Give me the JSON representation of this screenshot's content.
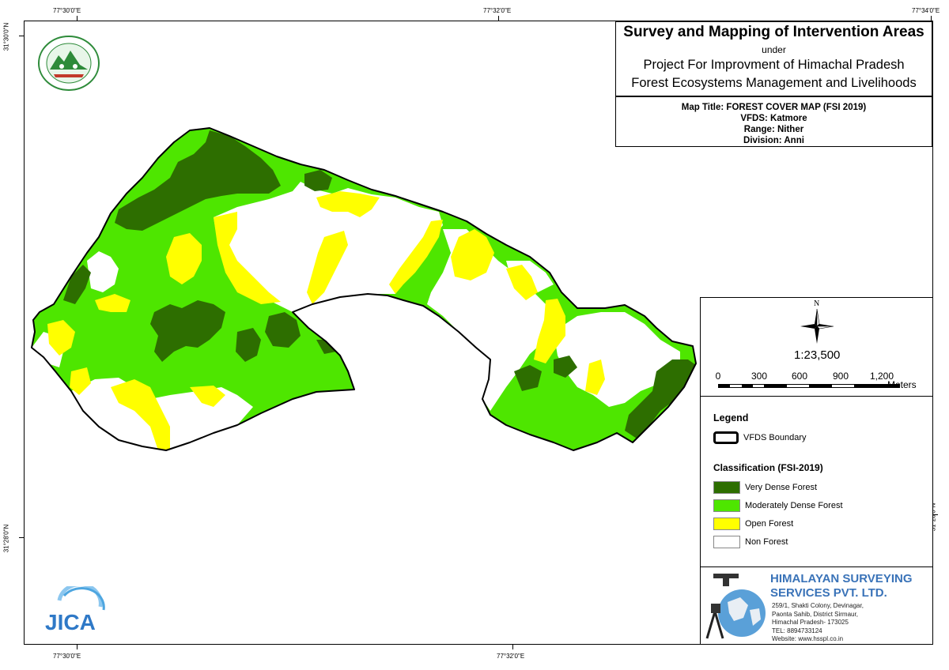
{
  "coordinates": {
    "top": [
      "77°30'0\"E",
      "77°32'0\"E",
      "77°34'0\"E"
    ],
    "bottom": [
      "77°30'0\"E",
      "77°32'0\"E"
    ],
    "left": [
      "31°30'0\"N",
      "31°28'0\"N"
    ],
    "right": [
      "31°28'0\"N"
    ]
  },
  "title": {
    "main": "Survey and Mapping of Intervention Areas",
    "under": "under",
    "project_line1": "Project For Improvment of Himachal Pradesh",
    "project_line2": "Forest Ecosystems Management and Livelihoods"
  },
  "map_info": {
    "map_title": "Map Title: FOREST COVER MAP (FSI 2019)",
    "vfds": "VFDS: Katmore",
    "range": "Range: Nither",
    "division": "Division: Anni"
  },
  "scale": {
    "north": "N",
    "ratio": "1:23,500",
    "labels": [
      "0",
      "300",
      "600",
      "900",
      "1,200"
    ],
    "unit": "Meters"
  },
  "legend": {
    "title": "Legend",
    "boundary_label": "VFDS Boundary",
    "classification_title": "Classification (FSI-2019)",
    "classes": [
      {
        "label": "Very Dense Forest",
        "color": "#2d6e00"
      },
      {
        "label": "Moderately Dense Forest",
        "color": "#4ee600"
      },
      {
        "label": "Open Forest",
        "color": "#ffff00"
      },
      {
        "label": "Non Forest",
        "color": "#ffffff"
      }
    ]
  },
  "company": {
    "name_line1": "HIMALAYAN SURVEYING",
    "name_line2": "SERVICES PVT. LTD.",
    "address": [
      "259/1, Shakti Colony, Devinagar,",
      "Paonta Sahib, District Sirmaur,",
      "Himachal Pradesh- 173025",
      "TEL: 8894733124",
      "Website: www.hsspl.co.in"
    ]
  },
  "logos": {
    "jica_text": "JICA"
  }
}
